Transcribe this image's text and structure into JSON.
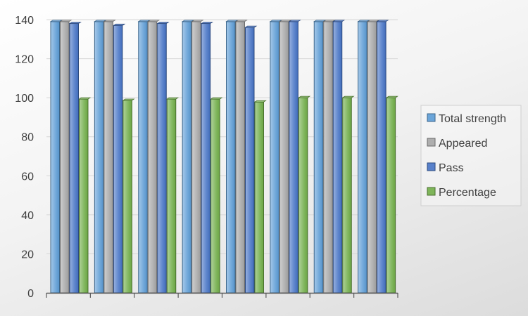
{
  "chart_data": {
    "type": "bar",
    "title": "",
    "xlabel": "",
    "ylabel": "",
    "ylim": [
      0,
      140
    ],
    "yticks": [
      0,
      20,
      40,
      60,
      80,
      100,
      120,
      140
    ],
    "grid": true,
    "legend_position": "right",
    "categories": [
      "",
      "",
      "",
      "",
      "",
      "",
      "",
      ""
    ],
    "series": [
      {
        "name": "Total strength",
        "color": "#5b9bd5",
        "values": [
          139,
          139,
          139,
          139,
          139,
          139,
          139,
          139
        ]
      },
      {
        "name": "Appeared",
        "color": "#a5a5a5",
        "values": [
          139,
          139,
          139,
          139,
          139,
          139,
          139,
          139
        ]
      },
      {
        "name": "Pass",
        "color": "#4472c4",
        "values": [
          138,
          137,
          138,
          138,
          136,
          139,
          139,
          139
        ]
      },
      {
        "name": "Percentage",
        "color": "#70ad47",
        "values": [
          99.3,
          98.6,
          99.3,
          99.3,
          97.8,
          100,
          100,
          100
        ]
      }
    ]
  }
}
